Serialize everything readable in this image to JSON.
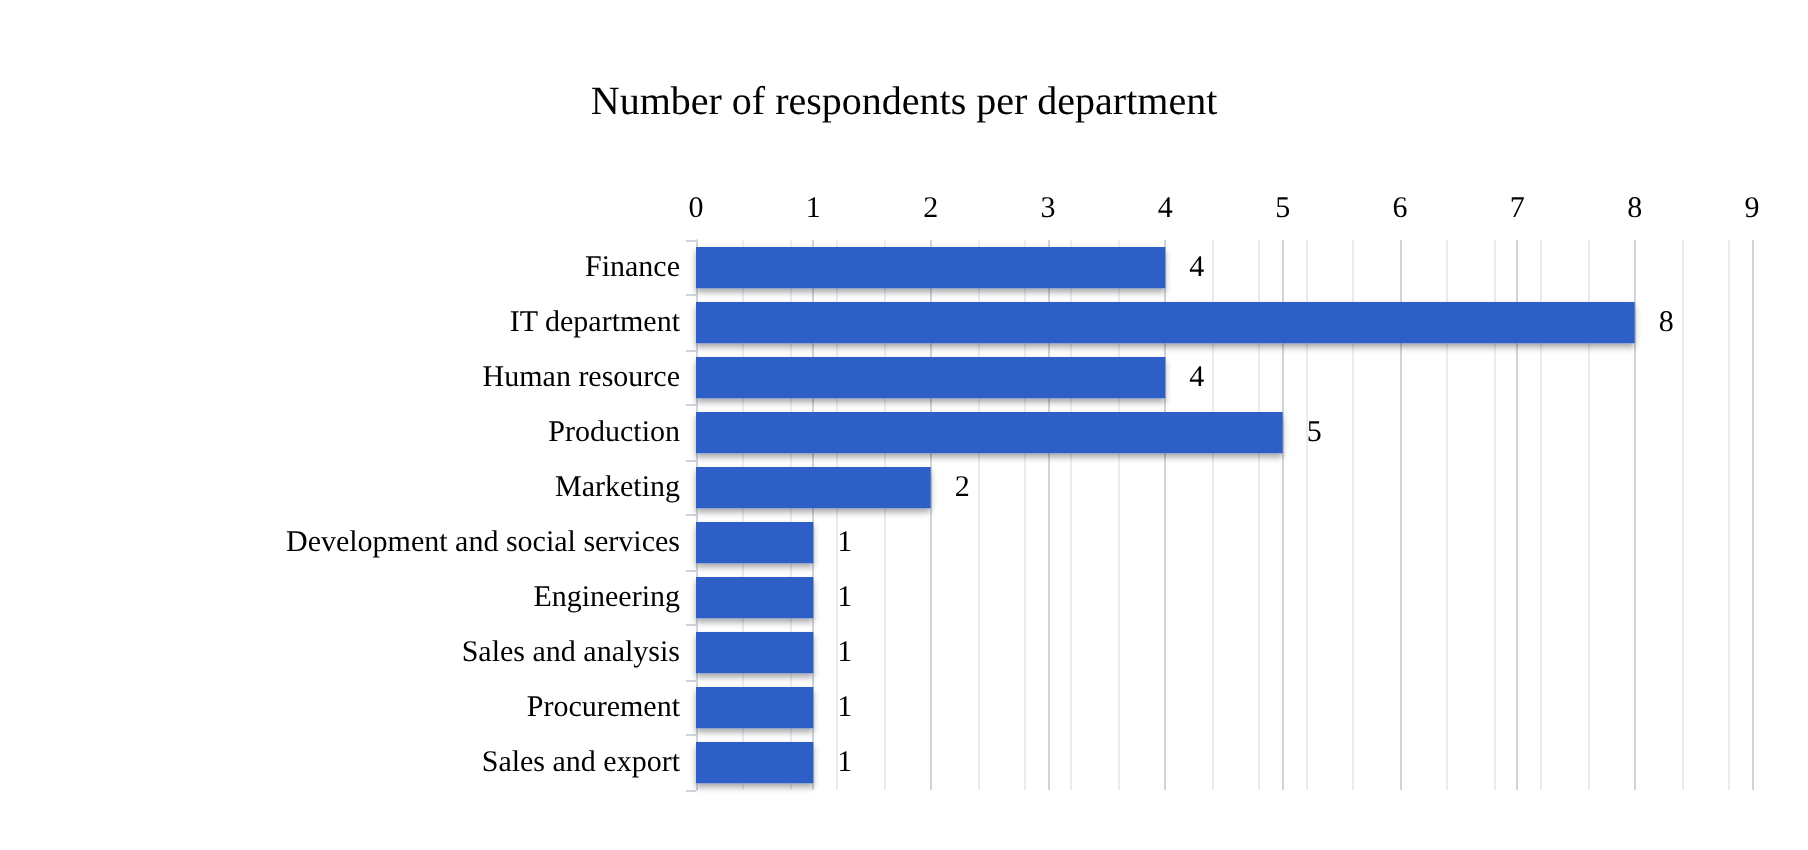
{
  "chart_data": {
    "type": "bar",
    "orientation": "horizontal",
    "title": "Number of respondents per department",
    "categories": [
      "Finance",
      "IT department",
      "Human resource",
      "Production",
      "Marketing",
      "Development and social services",
      "Engineering",
      "Sales and analysis",
      "Procurement",
      "Sales and export"
    ],
    "values": [
      4,
      8,
      4,
      5,
      2,
      1,
      1,
      1,
      1,
      1
    ],
    "color": "#2e5fc6",
    "xlim": [
      0,
      9
    ],
    "xticks": [
      0,
      1,
      2,
      3,
      4,
      5,
      6,
      7,
      8,
      9
    ],
    "grid": "x",
    "data_labels": true
  }
}
